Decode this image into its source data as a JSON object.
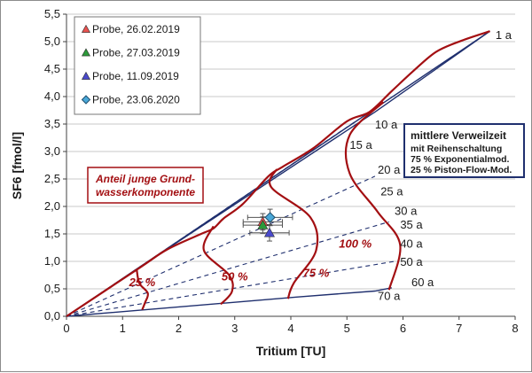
{
  "chart_data": {
    "type": "scatter",
    "xlabel": "Tritium [TU]",
    "ylabel": "SF6 [fmol/l]",
    "xlim": [
      0,
      8
    ],
    "ylim": [
      0,
      5.5
    ],
    "x_ticks": [
      "0",
      "1",
      "2",
      "3",
      "4",
      "5",
      "6",
      "7",
      "8"
    ],
    "y_ticks": [
      "0,0",
      "0,5",
      "1,0",
      "1,5",
      "2,0",
      "2,5",
      "3,0",
      "3,5",
      "4,0",
      "4,5",
      "5,0",
      "5,5"
    ],
    "grid": "horizontal",
    "legend_position": "top-left",
    "series": [
      {
        "name": "Probe, 26.02.2019",
        "marker": "triangle",
        "color": "#e8524f",
        "x": [
          3.5
        ],
        "y": [
          1.72
        ],
        "x_err": 0.35,
        "y_err": 0.15
      },
      {
        "name": "Probe, 27.03.2019",
        "marker": "triangle",
        "color": "#2c9a3a",
        "x": [
          3.5
        ],
        "y": [
          1.66
        ],
        "x_err": 0.35,
        "y_err": 0.15
      },
      {
        "name": "Probe, 11.09.2019",
        "marker": "triangle",
        "color": "#4a4acc",
        "x": [
          3.62
        ],
        "y": [
          1.52
        ],
        "x_err": 0.35,
        "y_err": 0.15
      },
      {
        "name": "Probe, 23.06.2020",
        "marker": "diamond",
        "color": "#4aa8d8",
        "x": [
          3.63
        ],
        "y": [
          1.8
        ],
        "x_err": 0.4,
        "y_err": 0.15
      }
    ],
    "model_curve": {
      "color": "#a30f12",
      "points": [
        [
          0,
          0
        ],
        [
          1.3,
          0.88
        ],
        [
          1.8,
          1.22
        ],
        [
          2.4,
          1.5
        ],
        [
          2.62,
          1.6
        ],
        [
          2.8,
          1.78
        ],
        [
          3.15,
          2.05
        ],
        [
          3.6,
          2.55
        ],
        [
          3.85,
          2.72
        ],
        [
          4.4,
          3.06
        ],
        [
          5.0,
          3.55
        ],
        [
          5.4,
          3.72
        ],
        [
          5.8,
          4.1
        ],
        [
          6.2,
          4.48
        ],
        [
          6.6,
          4.82
        ],
        [
          7.05,
          5.02
        ],
        [
          7.55,
          5.19
        ]
      ]
    },
    "boundary_lines": [
      {
        "style": "solid",
        "color": "#1f2f6e",
        "points": [
          [
            0,
            0
          ],
          [
            7.55,
            5.19
          ]
        ]
      },
      {
        "style": "solid",
        "color": "#1f2f6e",
        "points": [
          [
            0,
            0
          ],
          [
            1.25,
            0.86
          ],
          [
            5.5,
            3.72
          ],
          [
            7.55,
            5.19
          ]
        ]
      },
      {
        "style": "solid",
        "color": "#1f2f6e",
        "points": [
          [
            0,
            0
          ],
          [
            4.1,
            0.35
          ],
          [
            5.5,
            0.46
          ],
          [
            5.8,
            0.52
          ]
        ]
      }
    ],
    "dashed_lines": [
      {
        "style": "dashed",
        "color": "#1f2f6e",
        "points": [
          [
            0,
            0
          ],
          [
            5.2,
            3.58
          ]
        ]
      },
      {
        "style": "dashed",
        "color": "#1f2f6e",
        "points": [
          [
            0,
            0
          ],
          [
            5.5,
            2.55
          ]
        ]
      },
      {
        "style": "dashed",
        "color": "#1f2f6e",
        "points": [
          [
            0,
            0
          ],
          [
            5.75,
            1.72
          ]
        ]
      },
      {
        "style": "dashed",
        "color": "#1f2f6e",
        "points": [
          [
            0,
            0
          ],
          [
            5.85,
            1.0
          ]
        ]
      }
    ],
    "mixing_curves": [
      {
        "label": "25 %",
        "points": [
          [
            1.25,
            0.86
          ],
          [
            1.3,
            0.6
          ],
          [
            1.45,
            0.42
          ],
          [
            1.4,
            0.25
          ],
          [
            1.35,
            0.12
          ]
        ]
      },
      {
        "label": "50 %",
        "points": [
          [
            2.62,
            1.64
          ],
          [
            2.45,
            1.2
          ],
          [
            2.9,
            0.75
          ],
          [
            2.95,
            0.45
          ],
          [
            2.75,
            0.22
          ]
        ]
      },
      {
        "label": "75 %",
        "points": [
          [
            3.75,
            2.68
          ],
          [
            3.65,
            2.35
          ],
          [
            4.35,
            1.8
          ],
          [
            4.45,
            1.2
          ],
          [
            4.05,
            0.6
          ],
          [
            3.95,
            0.32
          ]
        ]
      },
      {
        "label": "100 %",
        "points": [
          [
            5.65,
            3.9
          ],
          [
            5.05,
            3.3
          ],
          [
            5.05,
            2.6
          ],
          [
            5.55,
            1.9
          ],
          [
            5.95,
            1.3
          ],
          [
            5.75,
            0.48
          ]
        ]
      }
    ],
    "age_labels": [
      {
        "text": "1 a",
        "x": 7.65,
        "y": 5.05
      },
      {
        "text": "10 a",
        "x": 5.5,
        "y": 3.42
      },
      {
        "text": "15 a",
        "x": 5.05,
        "y": 3.05
      },
      {
        "text": "20 a",
        "x": 5.55,
        "y": 2.6
      },
      {
        "text": "25 a",
        "x": 5.6,
        "y": 2.2
      },
      {
        "text": "30 a",
        "x": 5.85,
        "y": 1.85
      },
      {
        "text": "35 a",
        "x": 5.95,
        "y": 1.6
      },
      {
        "text": "40 a",
        "x": 5.95,
        "y": 1.25
      },
      {
        "text": "50 a",
        "x": 5.95,
        "y": 0.92
      },
      {
        "text": "60 a",
        "x": 6.15,
        "y": 0.55
      },
      {
        "text": "70 a",
        "x": 5.55,
        "y": 0.3
      }
    ],
    "percent_labels": [
      {
        "text": "25 %",
        "x": 1.35,
        "y": 0.55
      },
      {
        "text": "50 %",
        "x": 3.0,
        "y": 0.65
      },
      {
        "text": "75 %",
        "x": 4.45,
        "y": 0.72
      },
      {
        "text": "100 %",
        "x": 5.15,
        "y": 1.25
      }
    ],
    "info_box": {
      "title": "mittlere Verweilzeit",
      "lines": [
        "mit Reihenschaltung",
        "75 % Exponentialmod.",
        "25 % Piston-Flow-Mod."
      ]
    },
    "note_box": {
      "lines": [
        "Anteil junge Grund-",
        "wasserkomponente"
      ]
    }
  }
}
